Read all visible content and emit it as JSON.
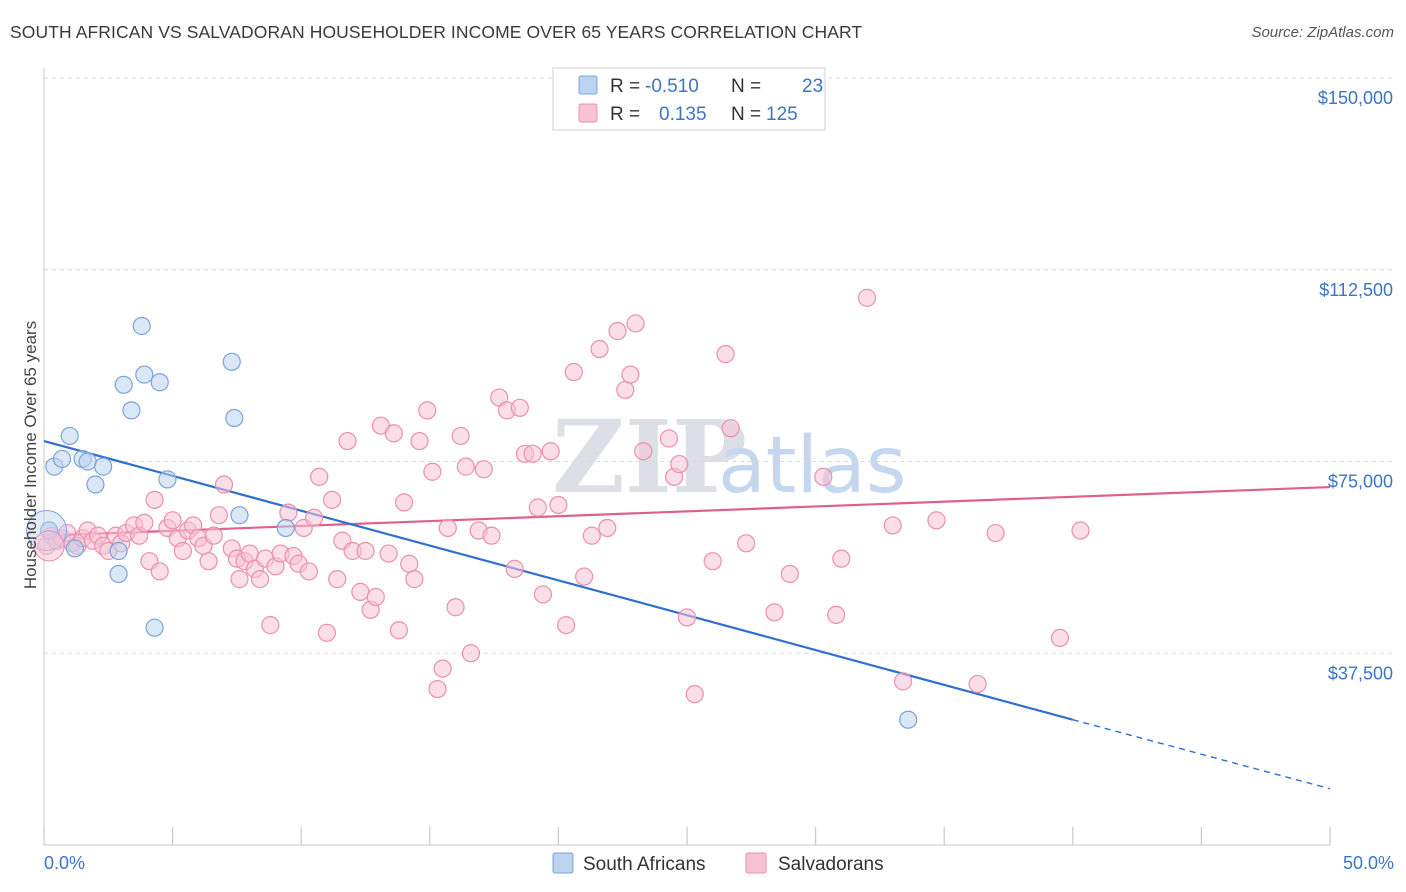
{
  "header": {
    "title": "SOUTH AFRICAN VS SALVADORAN HOUSEHOLDER INCOME OVER 65 YEARS CORRELATION CHART",
    "source": "Source: ZipAtlas.com"
  },
  "legend": {
    "rows": [
      {
        "r_label": "R =",
        "r_value": "-0.510",
        "n_label": "N =",
        "n_value": "23"
      },
      {
        "r_label": "R =",
        "r_value": "0.135",
        "n_label": "N =",
        "n_value": "125"
      }
    ]
  },
  "watermark": {
    "zip": "ZIP",
    "atlas": "atlas"
  },
  "colors": {
    "blue_fill": "#bcd3f0",
    "blue_stroke": "#7aa3dc",
    "blue_line": "#2f6fcf",
    "pink_fill": "#f7c3d3",
    "pink_stroke": "#ec8fae",
    "pink_line": "#e0608c",
    "tick_text": "#3d74c8",
    "grid": "#d9d9d9"
  },
  "chart_data": {
    "type": "scatter",
    "title": "SOUTH AFRICAN VS SALVADORAN HOUSEHOLDER INCOME OVER 65 YEARS CORRELATION CHART",
    "xlabel": "",
    "ylabel": "Householder Income Over 65 years",
    "xlim": [
      0,
      50
    ],
    "ylim": [
      0,
      150000
    ],
    "x_tick_labels": [
      "0.0%",
      "50.0%"
    ],
    "y_ticks": [
      {
        "value": 37500,
        "label": "$37,500"
      },
      {
        "value": 75000,
        "label": "$75,000"
      },
      {
        "value": 112500,
        "label": "$112,500"
      },
      {
        "value": 150000,
        "label": "$150,000"
      }
    ],
    "grid": true,
    "legend_position": "top-center",
    "series": [
      {
        "name": "South Africans",
        "r": -0.51,
        "n": 23,
        "trend": {
          "x0": 0,
          "y0": 79000,
          "x1": 40,
          "y1": 24500,
          "dash_to_x": 50,
          "dash_to_y": 11000
        },
        "points": [
          [
            0.2,
            61500
          ],
          [
            0.4,
            74000
          ],
          [
            0.7,
            75500
          ],
          [
            1.0,
            80000
          ],
          [
            1.2,
            58000
          ],
          [
            1.5,
            75500
          ],
          [
            1.7,
            75000
          ],
          [
            2.0,
            70500
          ],
          [
            2.3,
            74000
          ],
          [
            2.9,
            53000
          ],
          [
            2.9,
            57500
          ],
          [
            3.1,
            90000
          ],
          [
            3.4,
            85000
          ],
          [
            3.8,
            101500
          ],
          [
            3.9,
            92000
          ],
          [
            4.3,
            42500
          ],
          [
            4.5,
            90500
          ],
          [
            4.8,
            71500
          ],
          [
            7.3,
            94500
          ],
          [
            7.4,
            83500
          ],
          [
            7.6,
            64500
          ],
          [
            9.4,
            62000
          ],
          [
            33.6,
            24500
          ]
        ]
      },
      {
        "name": "Salvadorans",
        "r": 0.135,
        "n": 125,
        "trend": {
          "x0": 0,
          "y0": 60500,
          "x1": 50,
          "y1": 70000
        },
        "points": [
          [
            0.1,
            58500
          ],
          [
            0.3,
            60500
          ],
          [
            0.5,
            59500
          ],
          [
            0.7,
            60000
          ],
          [
            0.9,
            61000
          ],
          [
            1.1,
            59000
          ],
          [
            1.3,
            58500
          ],
          [
            1.5,
            60000
          ],
          [
            1.7,
            61500
          ],
          [
            1.9,
            59500
          ],
          [
            2.1,
            60500
          ],
          [
            2.3,
            58500
          ],
          [
            2.5,
            57500
          ],
          [
            2.8,
            60500
          ],
          [
            3.0,
            59000
          ],
          [
            3.2,
            61000
          ],
          [
            3.5,
            62500
          ],
          [
            3.7,
            60500
          ],
          [
            3.9,
            63000
          ],
          [
            4.1,
            55500
          ],
          [
            4.3,
            67500
          ],
          [
            4.5,
            53500
          ],
          [
            4.8,
            62000
          ],
          [
            5.0,
            63500
          ],
          [
            5.2,
            60000
          ],
          [
            5.4,
            57500
          ],
          [
            5.6,
            61500
          ],
          [
            5.8,
            62500
          ],
          [
            6.0,
            60000
          ],
          [
            6.2,
            58500
          ],
          [
            6.4,
            55500
          ],
          [
            6.6,
            60500
          ],
          [
            6.8,
            64500
          ],
          [
            7.0,
            70500
          ],
          [
            7.3,
            58000
          ],
          [
            7.5,
            56000
          ],
          [
            7.6,
            52000
          ],
          [
            7.8,
            55500
          ],
          [
            8.0,
            57000
          ],
          [
            8.2,
            54000
          ],
          [
            8.4,
            52000
          ],
          [
            8.6,
            56000
          ],
          [
            8.8,
            43000
          ],
          [
            9.0,
            54500
          ],
          [
            9.2,
            57000
          ],
          [
            9.5,
            65000
          ],
          [
            9.7,
            56500
          ],
          [
            9.9,
            55000
          ],
          [
            10.1,
            62000
          ],
          [
            10.3,
            53500
          ],
          [
            10.5,
            64000
          ],
          [
            10.7,
            72000
          ],
          [
            11.0,
            41500
          ],
          [
            11.2,
            67500
          ],
          [
            11.4,
            52000
          ],
          [
            11.6,
            59500
          ],
          [
            11.8,
            79000
          ],
          [
            12.0,
            57500
          ],
          [
            12.3,
            49500
          ],
          [
            12.5,
            57500
          ],
          [
            12.7,
            46000
          ],
          [
            12.9,
            48500
          ],
          [
            13.1,
            82000
          ],
          [
            13.4,
            57000
          ],
          [
            13.6,
            80500
          ],
          [
            13.8,
            42000
          ],
          [
            14.0,
            67000
          ],
          [
            14.2,
            55000
          ],
          [
            14.4,
            52000
          ],
          [
            14.6,
            79000
          ],
          [
            14.9,
            85000
          ],
          [
            15.1,
            73000
          ],
          [
            15.3,
            30500
          ],
          [
            15.5,
            34500
          ],
          [
            15.7,
            62000
          ],
          [
            16.0,
            46500
          ],
          [
            16.2,
            80000
          ],
          [
            16.4,
            74000
          ],
          [
            16.6,
            37500
          ],
          [
            16.9,
            61500
          ],
          [
            17.1,
            73500
          ],
          [
            17.4,
            60500
          ],
          [
            17.7,
            87500
          ],
          [
            18.0,
            85000
          ],
          [
            18.3,
            54000
          ],
          [
            18.5,
            85500
          ],
          [
            18.7,
            76500
          ],
          [
            19.0,
            76500
          ],
          [
            19.2,
            66000
          ],
          [
            19.4,
            49000
          ],
          [
            19.7,
            77000
          ],
          [
            20.0,
            66500
          ],
          [
            20.3,
            43000
          ],
          [
            20.6,
            92500
          ],
          [
            21.0,
            52500
          ],
          [
            21.3,
            60500
          ],
          [
            21.6,
            97000
          ],
          [
            21.9,
            62000
          ],
          [
            22.3,
            100500
          ],
          [
            22.6,
            89000
          ],
          [
            22.8,
            92000
          ],
          [
            23.0,
            102000
          ],
          [
            23.3,
            77000
          ],
          [
            24.3,
            79500
          ],
          [
            24.5,
            72000
          ],
          [
            24.7,
            74500
          ],
          [
            25.0,
            44500
          ],
          [
            25.3,
            29500
          ],
          [
            26.0,
            55500
          ],
          [
            26.5,
            96000
          ],
          [
            26.7,
            81500
          ],
          [
            27.3,
            59000
          ],
          [
            28.4,
            45500
          ],
          [
            29.0,
            53000
          ],
          [
            30.3,
            72000
          ],
          [
            30.8,
            45000
          ],
          [
            32.0,
            107000
          ],
          [
            33.4,
            32000
          ],
          [
            34.7,
            63500
          ],
          [
            36.3,
            31500
          ],
          [
            37.0,
            61000
          ],
          [
            39.5,
            40500
          ],
          [
            40.3,
            61500
          ],
          [
            33.0,
            62500
          ],
          [
            31.0,
            56000
          ]
        ]
      }
    ]
  }
}
